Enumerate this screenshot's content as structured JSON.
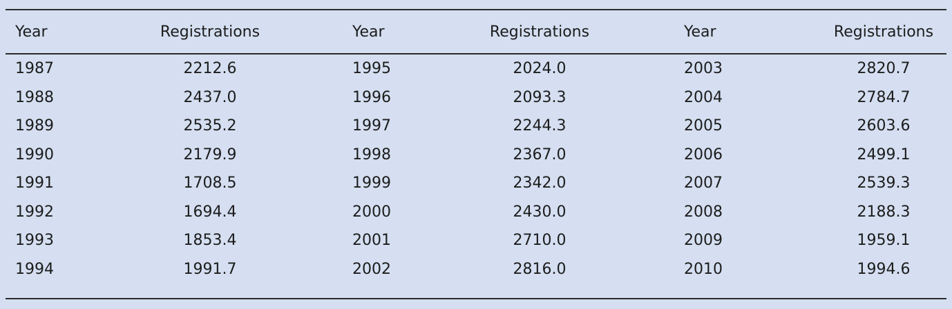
{
  "table": {
    "header": [
      "Year",
      "Registrations",
      "Year",
      "Registrations",
      "Year",
      "Registrations"
    ],
    "rows": [
      [
        "1987",
        "2212.6",
        "1995",
        "2024.0",
        "2003",
        "2820.7"
      ],
      [
        "1988",
        "2437.0",
        "1996",
        "2093.3",
        "2004",
        "2784.7"
      ],
      [
        "1989",
        "2535.2",
        "1997",
        "2244.3",
        "2005",
        "2603.6"
      ],
      [
        "1990",
        "2179.9",
        "1998",
        "2367.0",
        "2006",
        "2499.1"
      ],
      [
        "1991",
        "1708.5",
        "1999",
        "2342.0",
        "2007",
        "2539.3"
      ],
      [
        "1992",
        "1694.4",
        "2000",
        "2430.0",
        "2008",
        "2188.3"
      ],
      [
        "1993",
        "1853.4",
        "2001",
        "2710.0",
        "2009",
        "1959.1"
      ],
      [
        "1994",
        "1991.7",
        "2002",
        "2816.0",
        "2010",
        "1994.6"
      ]
    ]
  }
}
